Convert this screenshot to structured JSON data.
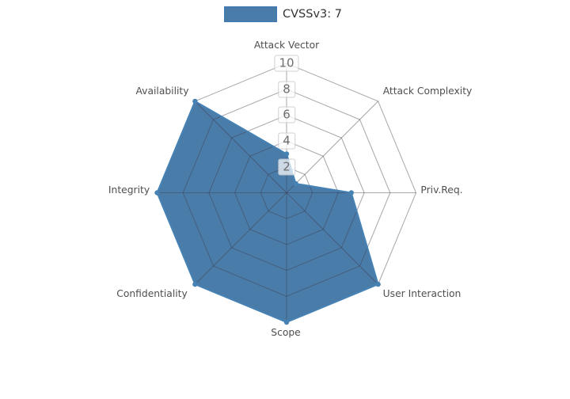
{
  "legend": {
    "label": "CVSSv3: 7",
    "swatch_fill": "#4a7caa",
    "swatch_border": "#3e78b5"
  },
  "chart_data": {
    "type": "radar",
    "title": "CVSSv3: 7",
    "categories": [
      "Attack Vector",
      "Attack Complexity",
      "Priv.Req.",
      "User Interaction",
      "Scope",
      "Confidentiality",
      "Integrity",
      "Availability"
    ],
    "series": [
      {
        "name": "CVSSv3: 7",
        "values": [
          3,
          1,
          5,
          10,
          10,
          10,
          10,
          10
        ]
      }
    ],
    "radial_ticks": [
      2,
      4,
      6,
      8,
      10
    ],
    "radial_range": [
      0,
      10
    ],
    "grid": true,
    "legend_position": "top-center",
    "fill_color": "#4a7caa",
    "line_color": "#4682b4",
    "marker_color": "#4682b4",
    "grid_color": "rgba(60,60,72,0.45)",
    "label_color": "#4f4f4f",
    "tick_label_color": "#6e6e6e"
  }
}
